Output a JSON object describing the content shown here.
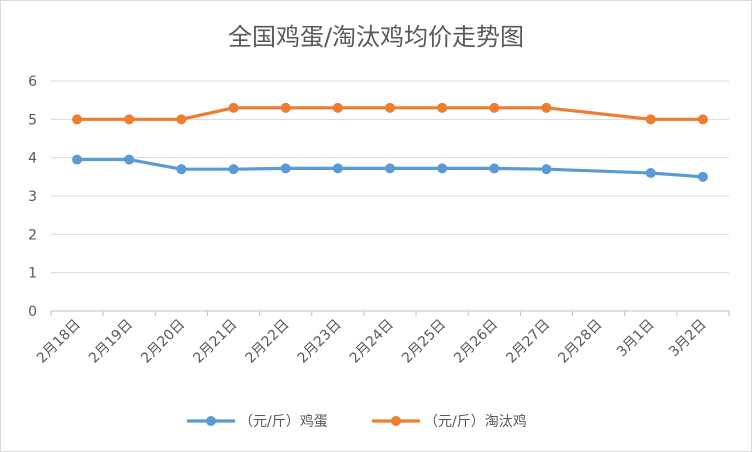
{
  "chart_data": {
    "type": "line",
    "title": "全国鸡蛋/淘汰鸡均价走势图",
    "categories": [
      "2月18日",
      "2月19日",
      "2月20日",
      "2月21日",
      "2月22日",
      "2月23日",
      "2月24日",
      "2月25日",
      "2月26日",
      "2月27日",
      "2月28日",
      "3月1日",
      "3月2日"
    ],
    "yticks": [
      "0",
      "1",
      "2",
      "3",
      "4",
      "5",
      "6"
    ],
    "ylim": [
      0,
      6
    ],
    "grid": true,
    "legend": "bottom",
    "series": [
      {
        "name": "（元/斤）鸡蛋",
        "color": "#5b9bd5",
        "points": [
          {
            "x": "2月18日",
            "y": 3.95
          },
          {
            "x": "2月19日",
            "y": 3.95
          },
          {
            "x": "2月20日",
            "y": 3.7
          },
          {
            "x": "2月21日",
            "y": 3.7
          },
          {
            "x": "2月22日",
            "y": 3.72
          },
          {
            "x": "2月23日",
            "y": 3.72
          },
          {
            "x": "2月24日",
            "y": 3.72
          },
          {
            "x": "2月25日",
            "y": 3.72
          },
          {
            "x": "2月26日",
            "y": 3.72
          },
          {
            "x": "2月27日",
            "y": 3.7
          },
          {
            "x": "3月1日",
            "y": 3.6
          },
          {
            "x": "3月2日",
            "y": 3.5
          }
        ]
      },
      {
        "name": "（元/斤）淘汰鸡",
        "color": "#ed7d31",
        "points": [
          {
            "x": "2月18日",
            "y": 5.0
          },
          {
            "x": "2月19日",
            "y": 5.0
          },
          {
            "x": "2月20日",
            "y": 5.0
          },
          {
            "x": "2月21日",
            "y": 5.3
          },
          {
            "x": "2月22日",
            "y": 5.3
          },
          {
            "x": "2月23日",
            "y": 5.3
          },
          {
            "x": "2月24日",
            "y": 5.3
          },
          {
            "x": "2月25日",
            "y": 5.3
          },
          {
            "x": "2月26日",
            "y": 5.3
          },
          {
            "x": "2月27日",
            "y": 5.3
          },
          {
            "x": "3月1日",
            "y": 5.0
          },
          {
            "x": "3月2日",
            "y": 5.0
          }
        ]
      }
    ]
  }
}
